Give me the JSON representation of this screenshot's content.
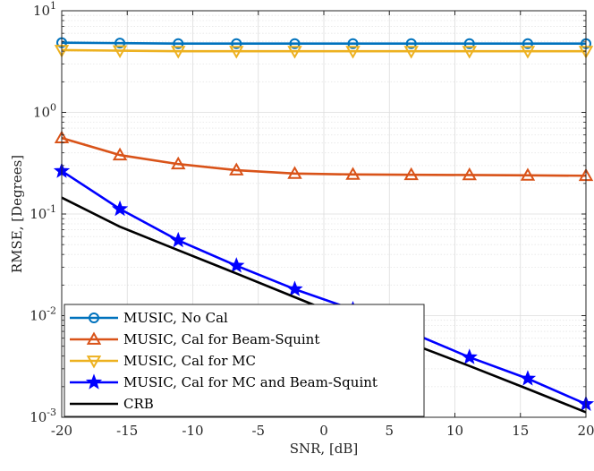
{
  "chart_data": {
    "type": "line",
    "title": "",
    "xlabel": "SNR, [dB]",
    "ylabel": "RMSE, [Degrees]",
    "xscale": "linear",
    "yscale": "log",
    "xlim": [
      -20,
      20
    ],
    "ylim": [
      0.001,
      10
    ],
    "xticks": [
      -20,
      -15,
      -10,
      -5,
      0,
      5,
      10,
      15,
      20
    ],
    "xtick_labels": [
      "-20",
      "-15",
      "-10",
      "-5",
      "0",
      "5",
      "10",
      "15",
      "20"
    ],
    "yticks": [
      0.001,
      0.01,
      0.1,
      1,
      10
    ],
    "ytick_labels": [
      {
        "base": "10",
        "exp": "-3"
      },
      {
        "base": "10",
        "exp": "-2"
      },
      {
        "base": "10",
        "exp": "-1"
      },
      {
        "base": "10",
        "exp": "0"
      },
      {
        "base": "10",
        "exp": "1"
      }
    ],
    "grid": true,
    "minor_grid": true,
    "legend_position": "bottom-left",
    "series": [
      {
        "name": "MUSIC, No Cal",
        "color": "#0072BD",
        "marker": "circle",
        "x": [
          -20,
          -15.56,
          -11.11,
          -6.67,
          -2.22,
          2.22,
          6.67,
          11.11,
          15.56,
          20
        ],
        "y": [
          4.85,
          4.8,
          4.75,
          4.75,
          4.75,
          4.75,
          4.75,
          4.75,
          4.75,
          4.75
        ]
      },
      {
        "name": "MUSIC, Cal for Beam-Squint",
        "color": "#D95319",
        "marker": "triangle-up",
        "x": [
          -20,
          -15.56,
          -11.11,
          -6.67,
          -2.22,
          2.22,
          6.67,
          11.11,
          15.56,
          20
        ],
        "y": [
          0.56,
          0.38,
          0.31,
          0.27,
          0.25,
          0.245,
          0.243,
          0.242,
          0.24,
          0.238
        ]
      },
      {
        "name": "MUSIC, Cal for MC",
        "color": "#EDB120",
        "marker": "triangle-down",
        "x": [
          -20,
          -15.56,
          -11.11,
          -6.67,
          -2.22,
          2.22,
          6.67,
          11.11,
          15.56,
          20
        ],
        "y": [
          4.1,
          4.05,
          4.0,
          4.0,
          4.0,
          4.0,
          4.0,
          4.0,
          4.0,
          4.0
        ]
      },
      {
        "name": "MUSIC, Cal for MC and Beam-Squint",
        "color": "#0000FF",
        "marker": "star",
        "x": [
          -20,
          -15.56,
          -11.11,
          -6.67,
          -2.22,
          2.22,
          6.67,
          11.11,
          15.56,
          20
        ],
        "y": [
          0.265,
          0.112,
          0.055,
          0.031,
          0.0182,
          0.0115,
          0.0068,
          0.0039,
          0.0024,
          0.00135
        ]
      },
      {
        "name": "CRB",
        "color": "#000000",
        "marker": "none",
        "x": [
          -20,
          -15.56,
          -11.11,
          -6.67,
          -2.22,
          2.22,
          6.67,
          11.11,
          15.56,
          20
        ],
        "y": [
          0.145,
          0.075,
          0.044,
          0.026,
          0.0152,
          0.0089,
          0.0053,
          0.0032,
          0.0019,
          0.00112
        ]
      }
    ]
  }
}
